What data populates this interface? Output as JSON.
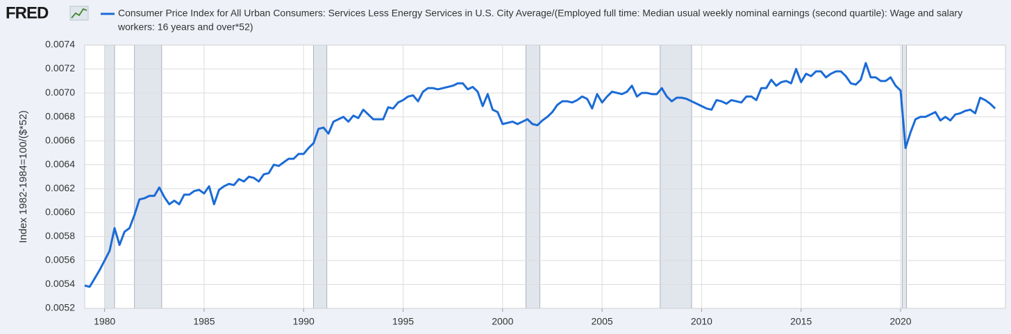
{
  "chart_data": {
    "type": "line",
    "logo": "FRED",
    "y_label": "Index 1982-1984=100/($*52)",
    "legend_lines": [
      "Consumer Price Index for All Urban Consumers: Services Less Energy Services in U.S. City Average/(Employed full time: Median usual weekly nominal earnings (second quartile): Wage and salary",
      "workers: 16 years and over*52)"
    ],
    "xlim": [
      1979,
      2025.27
    ],
    "ylim": [
      0.0052,
      0.0074
    ],
    "xticks": [
      1980,
      1985,
      1990,
      1995,
      2000,
      2005,
      2010,
      2015,
      2020
    ],
    "yticks": [
      0.0052,
      0.0054,
      0.0056,
      0.0058,
      {
        "value": 0.006,
        "label": "0.0060"
      },
      0.0062,
      0.0064,
      0.0066,
      0.0068,
      {
        "value": 0.007,
        "label": "0.0070"
      },
      0.0072,
      0.0074
    ],
    "grid": true,
    "recessions": [
      [
        1980.0,
        1980.5
      ],
      [
        1981.5,
        1982.87
      ],
      [
        1990.5,
        1991.17
      ],
      [
        2001.17,
        2001.87
      ],
      [
        2007.92,
        2009.5
      ],
      [
        2020.08,
        2020.3
      ]
    ],
    "recession_color": "#e1e5ec",
    "x": [
      1979,
      1979.25,
      1979.5,
      1979.75,
      1980,
      1980.25,
      1980.5,
      1980.75,
      1981,
      1981.25,
      1981.5,
      1981.75,
      1982,
      1982.25,
      1982.5,
      1982.75,
      1983,
      1983.25,
      1983.5,
      1983.75,
      1984,
      1984.25,
      1984.5,
      1984.75,
      1985,
      1985.25,
      1985.5,
      1985.75,
      1986,
      1986.25,
      1986.5,
      1986.75,
      1987,
      1987.25,
      1987.5,
      1987.75,
      1988,
      1988.25,
      1988.5,
      1988.75,
      1989,
      1989.25,
      1989.5,
      1989.75,
      1990,
      1990.25,
      1990.5,
      1990.75,
      1991,
      1991.25,
      1991.5,
      1991.75,
      1992,
      1992.25,
      1992.5,
      1992.75,
      1993,
      1993.25,
      1993.5,
      1993.75,
      1994,
      1994.25,
      1994.5,
      1994.75,
      1995,
      1995.25,
      1995.5,
      1995.75,
      1996,
      1996.25,
      1996.5,
      1996.75,
      1997,
      1997.25,
      1997.5,
      1997.75,
      1998,
      1998.25,
      1998.5,
      1998.75,
      1999,
      1999.25,
      1999.5,
      1999.75,
      2000,
      2000.25,
      2000.5,
      2000.75,
      2001,
      2001.25,
      2001.5,
      2001.75,
      2002,
      2002.25,
      2002.5,
      2002.75,
      2003,
      2003.25,
      2003.5,
      2003.75,
      2004,
      2004.25,
      2004.5,
      2004.75,
      2005,
      2005.25,
      2005.5,
      2005.75,
      2006,
      2006.25,
      2006.5,
      2006.75,
      2007,
      2007.25,
      2007.5,
      2007.75,
      2008,
      2008.25,
      2008.5,
      2008.75,
      2009,
      2009.25,
      2009.5,
      2009.75,
      2010,
      2010.25,
      2010.5,
      2010.75,
      2011,
      2011.25,
      2011.5,
      2011.75,
      2012,
      2012.25,
      2012.5,
      2012.75,
      2013,
      2013.25,
      2013.5,
      2013.75,
      2014,
      2014.25,
      2014.5,
      2014.75,
      2015,
      2015.25,
      2015.5,
      2015.75,
      2016,
      2016.25,
      2016.5,
      2016.75,
      2017,
      2017.25,
      2017.5,
      2017.75,
      2018,
      2018.25,
      2018.5,
      2018.75,
      2019,
      2019.25,
      2019.5,
      2019.75,
      2020,
      2020.25,
      2020.5,
      2020.75,
      2021,
      2021.25,
      2021.5,
      2021.75,
      2022,
      2022.25,
      2022.5,
      2022.75,
      2023,
      2023.25,
      2023.5,
      2023.75,
      2024,
      2024.25,
      2024.5,
      2024.75
    ],
    "series": [
      {
        "name": "Consumer Price Index for All Urban Consumers: Services Less Energy Services in U.S. City Average/(Employed full time: Median usual weekly nominal earnings (second quartile): Wage and salary workers: 16 years and over*52)",
        "color": "#1a6bd6",
        "values": [
          0.00539,
          0.00538,
          0.00545,
          0.00552,
          0.0056,
          0.00568,
          0.00587,
          0.00573,
          0.00584,
          0.00587,
          0.00598,
          0.00611,
          0.00612,
          0.00614,
          0.00614,
          0.00621,
          0.00613,
          0.00607,
          0.0061,
          0.00607,
          0.00615,
          0.00615,
          0.00618,
          0.00619,
          0.00616,
          0.00622,
          0.00607,
          0.00619,
          0.00622,
          0.00624,
          0.00623,
          0.00628,
          0.00626,
          0.0063,
          0.00629,
          0.00626,
          0.00632,
          0.00633,
          0.0064,
          0.00639,
          0.00642,
          0.00645,
          0.00645,
          0.00649,
          0.00649,
          0.00654,
          0.00658,
          0.0067,
          0.00671,
          0.00666,
          0.00676,
          0.00678,
          0.0068,
          0.00676,
          0.00681,
          0.00679,
          0.00686,
          0.00682,
          0.00678,
          0.00678,
          0.00678,
          0.00688,
          0.00687,
          0.00692,
          0.00694,
          0.00697,
          0.00698,
          0.00693,
          0.00701,
          0.00704,
          0.00704,
          0.00703,
          0.00704,
          0.00705,
          0.00706,
          0.00708,
          0.00708,
          0.00703,
          0.00705,
          0.00701,
          0.00689,
          0.00699,
          0.00686,
          0.00684,
          0.00674,
          0.00675,
          0.00676,
          0.00674,
          0.00676,
          0.00678,
          0.00674,
          0.00673,
          0.00677,
          0.0068,
          0.00684,
          0.0069,
          0.00693,
          0.00693,
          0.00692,
          0.00694,
          0.00697,
          0.00695,
          0.00687,
          0.00699,
          0.00692,
          0.00697,
          0.00701,
          0.007,
          0.00699,
          0.00701,
          0.00706,
          0.00697,
          0.007,
          0.007,
          0.00699,
          0.00699,
          0.00704,
          0.00697,
          0.00693,
          0.00696,
          0.00696,
          0.00695,
          0.00693,
          0.00691,
          0.00689,
          0.00687,
          0.00686,
          0.00694,
          0.00693,
          0.00691,
          0.00694,
          0.00693,
          0.00692,
          0.00697,
          0.00697,
          0.00694,
          0.00704,
          0.00704,
          0.00711,
          0.00706,
          0.00709,
          0.0071,
          0.00708,
          0.0072,
          0.00709,
          0.00716,
          0.00714,
          0.00718,
          0.00718,
          0.00713,
          0.00716,
          0.00718,
          0.00718,
          0.00714,
          0.00708,
          0.00707,
          0.00711,
          0.00725,
          0.00713,
          0.00713,
          0.0071,
          0.0071,
          0.00713,
          0.00706,
          0.00702,
          0.00654,
          0.00667,
          0.00678,
          0.0068,
          0.0068,
          0.00682,
          0.00684,
          0.00677,
          0.0068,
          0.00677,
          0.00682,
          0.00683,
          0.00685,
          0.00686,
          0.00683,
          0.00696,
          0.00694,
          0.00691,
          0.00687
        ]
      }
    ]
  }
}
